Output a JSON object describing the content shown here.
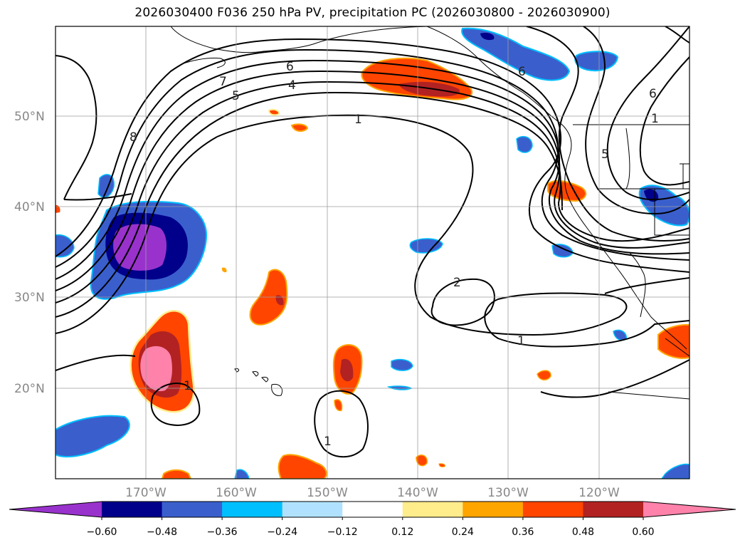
{
  "title": "2026030400 F036 250 hPa PV, precipitation PC (2026030800 - 2026030900)",
  "map": {
    "lat_labels": [
      "50°N",
      "40°N",
      "30°N",
      "20°N"
    ],
    "lon_labels": [
      "170°W",
      "160°W",
      "150°W",
      "140°W",
      "130°W",
      "120°W"
    ],
    "extent": {
      "lon_min": -180,
      "lon_max": -110,
      "lat_min": 10,
      "lat_max": 60
    }
  },
  "contour_labels": [
    "8",
    "7",
    "6",
    "5",
    "4",
    "1",
    "6",
    "6",
    "5",
    "2",
    "1",
    "1",
    "1",
    "1"
  ],
  "colorbar": {
    "ticks": [
      "−0.60",
      "−0.48",
      "−0.36",
      "−0.24",
      "−0.12",
      "0.12",
      "0.24",
      "0.36",
      "0.48",
      "0.60"
    ],
    "colors": [
      "#9932cc",
      "#00008b",
      "#3a5fcd",
      "#00bfff",
      "#b0e2ff",
      "#ffffff",
      "#ffec8b",
      "#ffa500",
      "#ff4500",
      "#b22222",
      "#ff82ab"
    ]
  }
}
